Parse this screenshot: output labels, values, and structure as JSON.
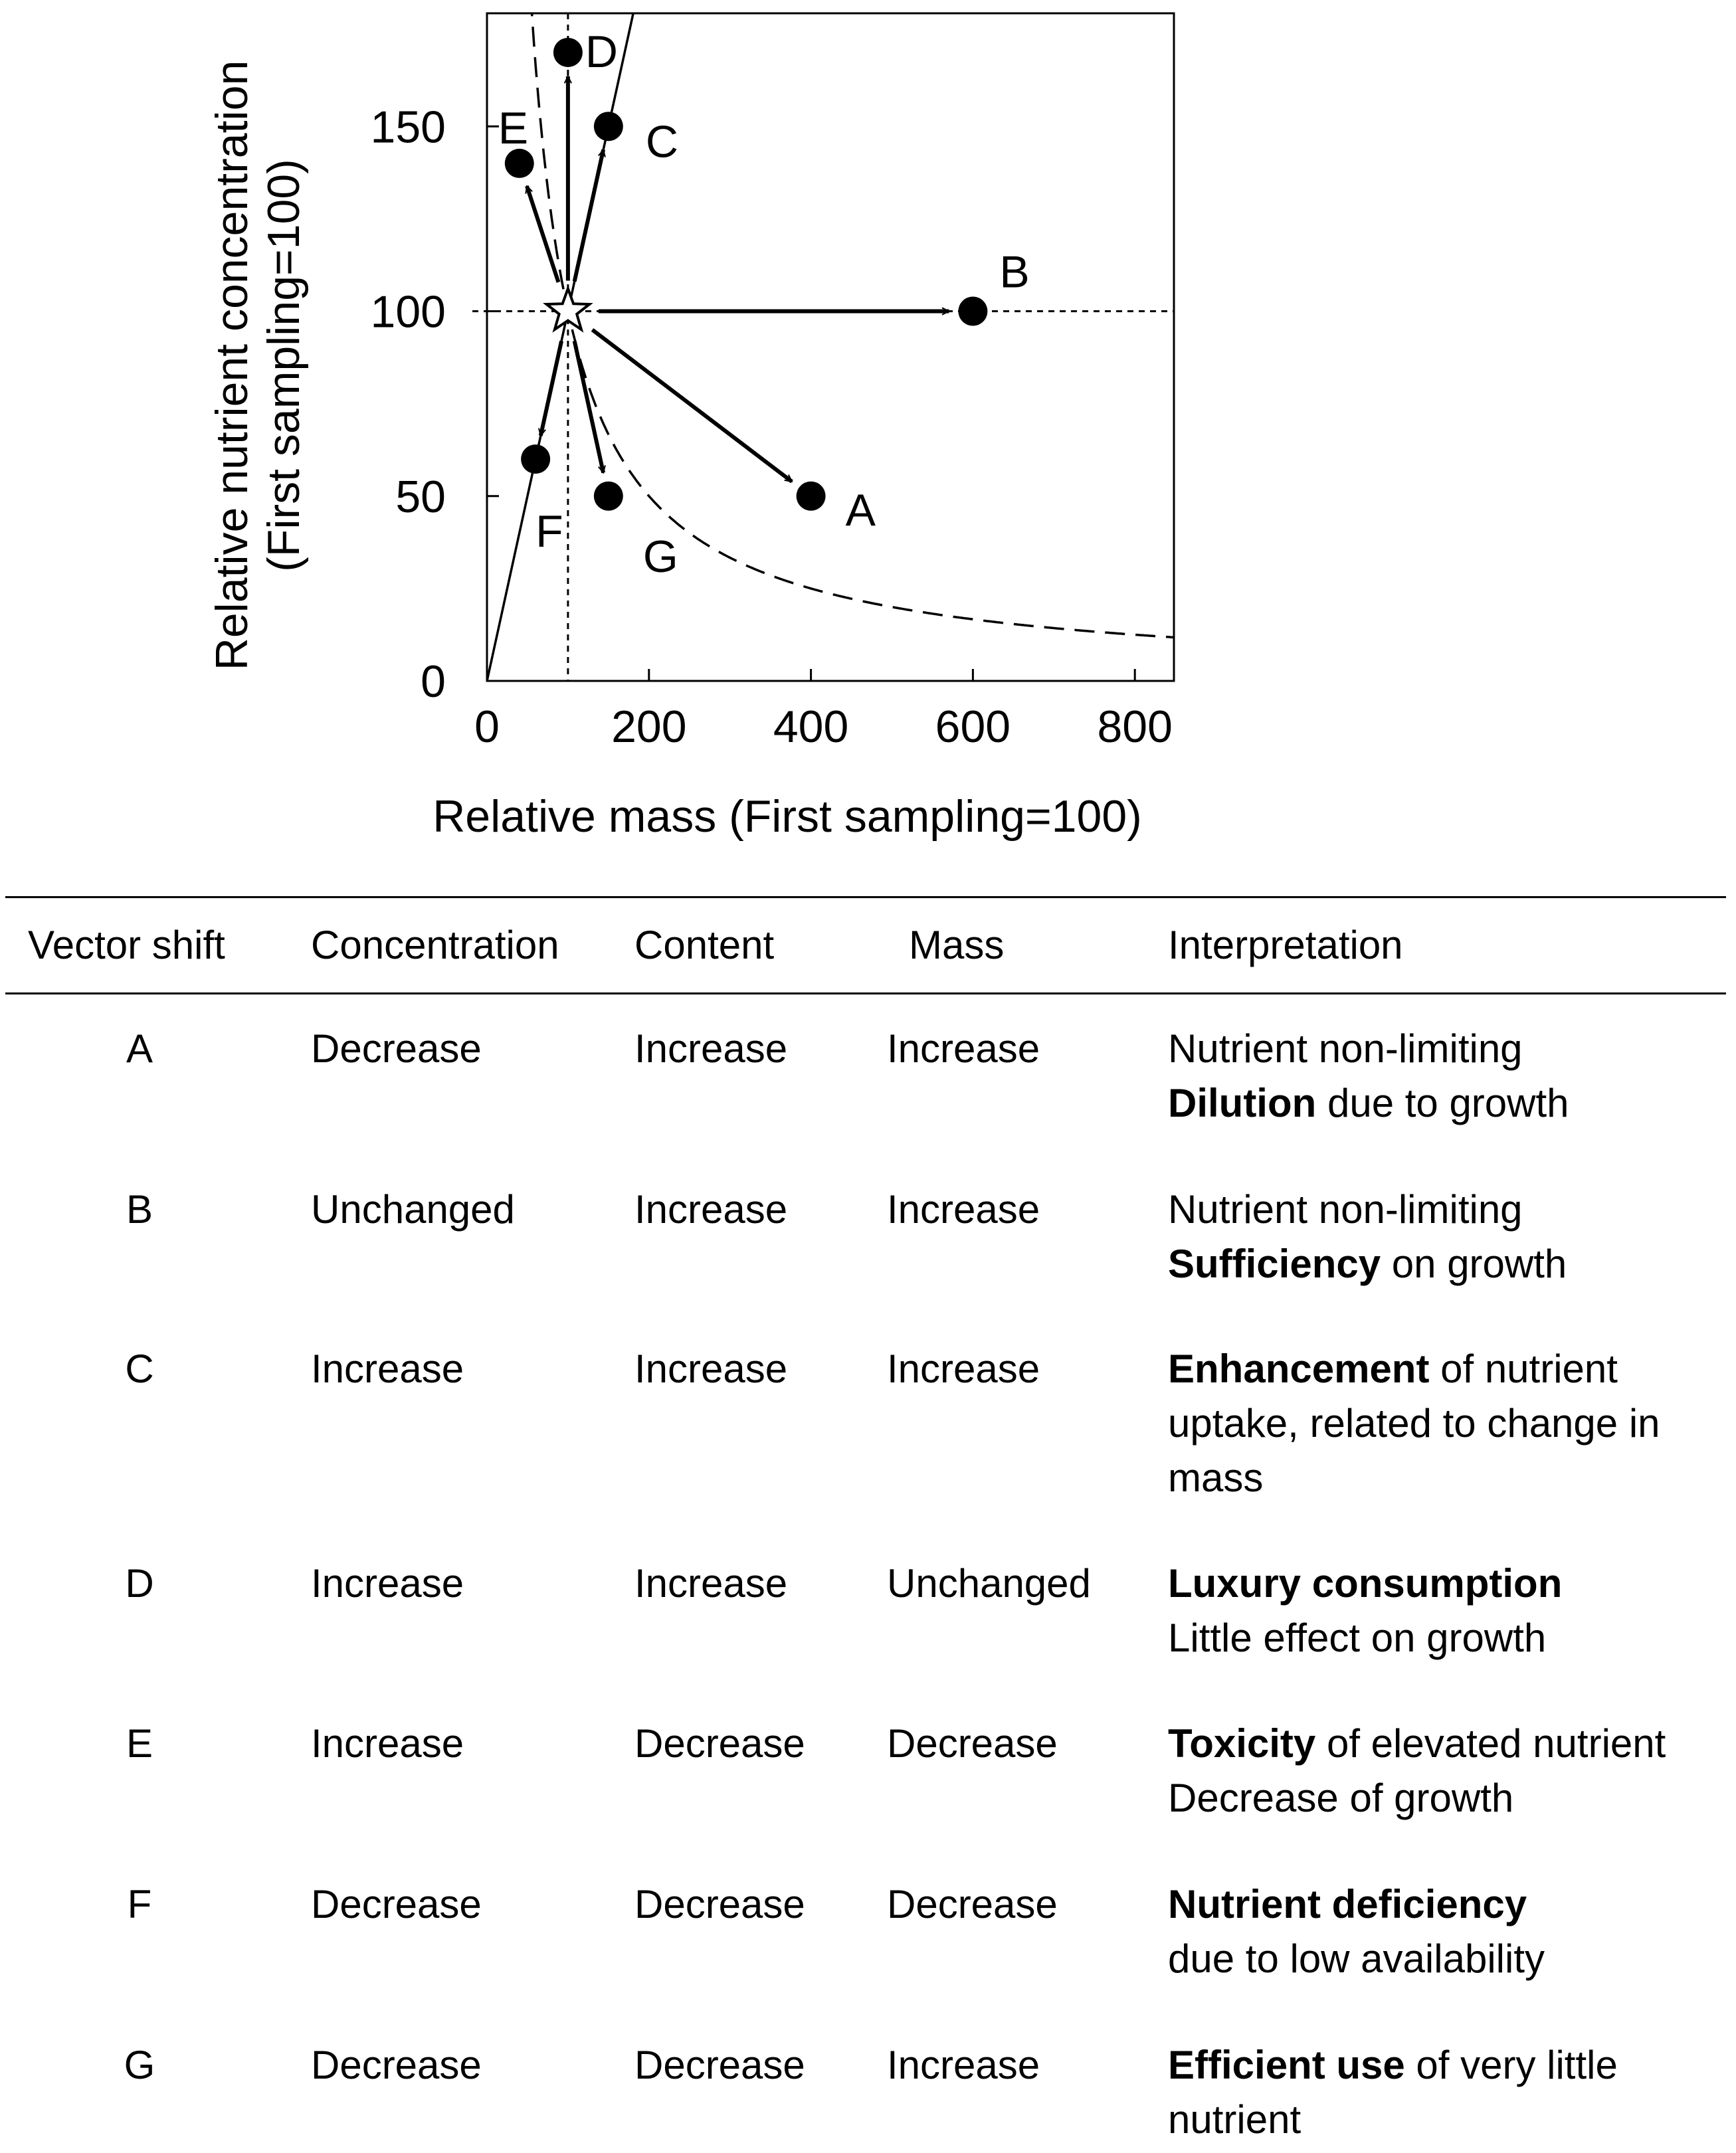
{
  "chart_data": {
    "type": "scatter",
    "title": "",
    "xlabel": "Relative mass (First sampling=100)",
    "ylabel": "Relative nutrient concentration\n(First sampling=100)",
    "xlim": [
      0,
      850
    ],
    "ylim": [
      0,
      180
    ],
    "xticks": [
      0,
      200,
      400,
      600,
      800
    ],
    "yticks": [
      0,
      50,
      100,
      150
    ],
    "grid": false,
    "reference": {
      "name": "First sampling",
      "x": 100,
      "y": 100,
      "marker": "star"
    },
    "reference_lines": {
      "x": 100,
      "y": 100,
      "style": "dotted"
    },
    "points": [
      {
        "label": "A",
        "x": 400,
        "y": 50
      },
      {
        "label": "B",
        "x": 600,
        "y": 100
      },
      {
        "label": "C",
        "x": 150,
        "y": 150
      },
      {
        "label": "D",
        "x": 100,
        "y": 170
      },
      {
        "label": "E",
        "x": 40,
        "y": 140
      },
      {
        "label": "F",
        "x": 60,
        "y": 60
      },
      {
        "label": "G",
        "x": 150,
        "y": 50
      }
    ],
    "curves": [
      {
        "name": "constant concentration-to-mass ratio line (solid)",
        "style": "solid",
        "equation": "y = x"
      },
      {
        "name": "constant content curve (dashed)",
        "style": "dashed",
        "equation": "y = 10000 / x"
      }
    ]
  },
  "table": {
    "headers": [
      "Vector shift",
      "Concentration",
      "Content",
      "Mass",
      "Interpretation"
    ],
    "rows": [
      {
        "shift": "A",
        "concentration": "Decrease",
        "content": "Increase",
        "mass": "Increase",
        "interp_1": "Nutrient non-limiting",
        "interp_bold": "Dilution",
        "interp_2": " due to growth"
      },
      {
        "shift": "B",
        "concentration": "Unchanged",
        "content": "Increase",
        "mass": "Increase",
        "interp_1": "Nutrient non-limiting",
        "interp_bold": "Sufficiency",
        "interp_2": " on growth"
      },
      {
        "shift": "C",
        "concentration": "Increase",
        "content": "Increase",
        "mass": "Increase",
        "interp_1": "",
        "interp_bold": "Enhancement",
        "interp_2": " of nutrient uptake, related to change in mass"
      },
      {
        "shift": "D",
        "concentration": "Increase",
        "content": "Increase",
        "mass": "Unchanged",
        "interp_1": "",
        "interp_bold": "Luxury consumption",
        "interp_2": "Little effect on growth"
      },
      {
        "shift": "E",
        "concentration": "Increase",
        "content": "Decrease",
        "mass": "Decrease",
        "interp_1": "",
        "interp_bold": "Toxicity",
        "interp_2": " of elevated nutrient Decrease of growth"
      },
      {
        "shift": "F",
        "concentration": "Decrease",
        "content": "Decrease",
        "mass": "Decrease",
        "interp_1": "",
        "interp_bold": "Nutrient deficiency",
        "interp_2": "due to low availability"
      },
      {
        "shift": "G",
        "concentration": "Decrease",
        "content": "Decrease",
        "mass": "Increase",
        "interp_1": "",
        "interp_bold": "Efficient use",
        "interp_2": " of very little nutrient"
      }
    ]
  }
}
